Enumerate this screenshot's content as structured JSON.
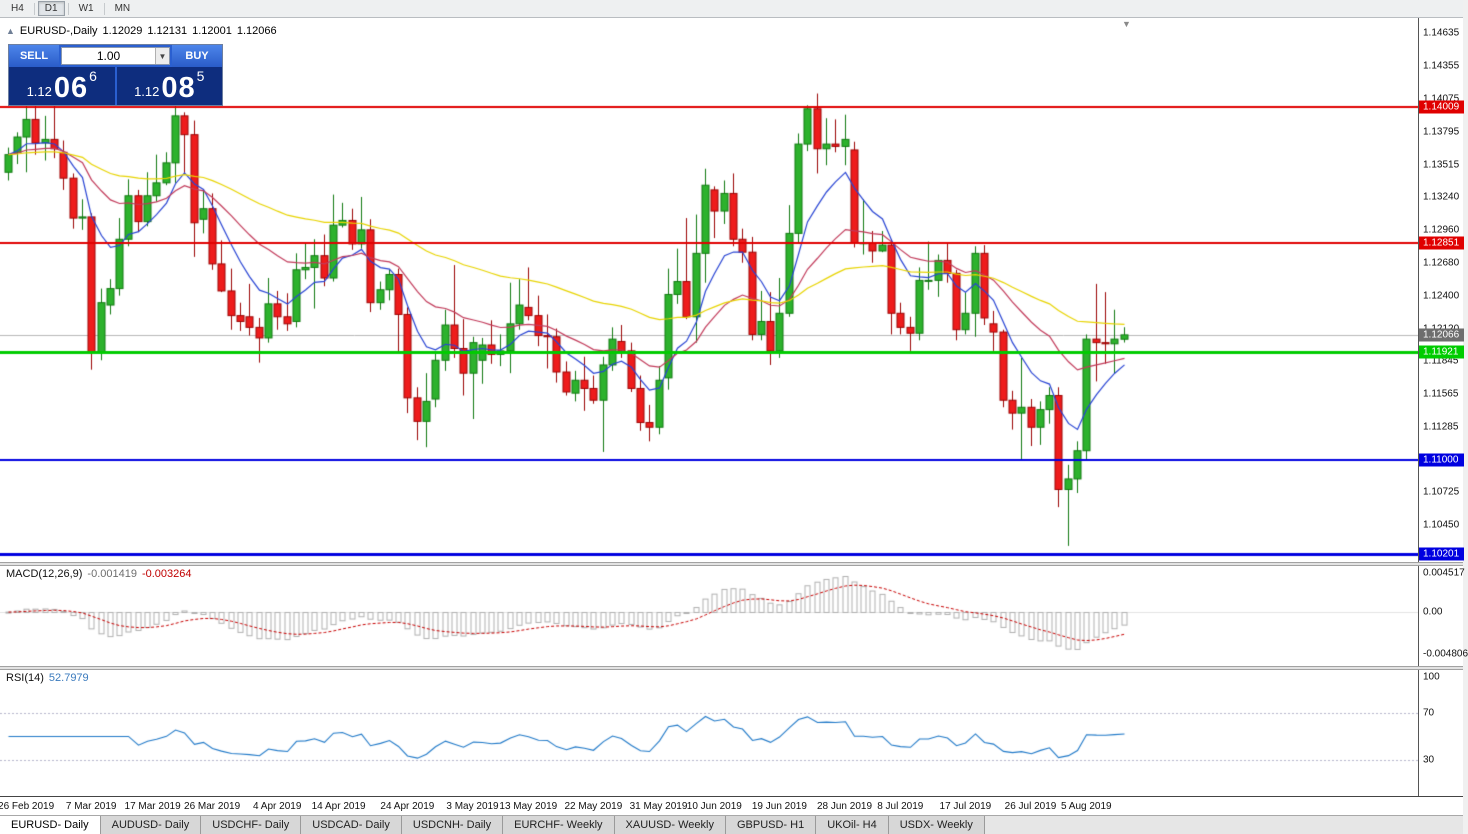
{
  "icons": {
    "collapse": "▲",
    "dropdown": "▼",
    "shift_marker": "▼"
  },
  "toolbar": {
    "periods": [
      {
        "label": "H4",
        "active": false
      },
      {
        "label": "D1",
        "active": true
      },
      {
        "label": "W1",
        "active": false
      },
      {
        "label": "MN",
        "active": false
      }
    ]
  },
  "trade_panel": {
    "sell_label": "SELL",
    "buy_label": "BUY",
    "volume": "1.00",
    "bid": {
      "prefix": "1.12",
      "big": "06",
      "sup": "6"
    },
    "ask": {
      "prefix": "1.12",
      "big": "08",
      "sup": "5"
    }
  },
  "tabs": [
    {
      "label": "EURUSD- Daily",
      "active": true
    },
    {
      "label": "AUDUSD- Daily",
      "active": false
    },
    {
      "label": "USDCHF- Daily",
      "active": false
    },
    {
      "label": "USDCAD- Daily",
      "active": false
    },
    {
      "label": "USDCNH- Daily",
      "active": false
    },
    {
      "label": "EURCHF- Weekly",
      "active": false
    },
    {
      "label": "XAUUSD- Weekly",
      "active": false
    },
    {
      "label": "GBPUSD- H1",
      "active": false
    },
    {
      "label": "UKOil- H4",
      "active": false
    },
    {
      "label": "USDX- Weekly",
      "active": false
    }
  ],
  "chart_data": {
    "type": "candlestick",
    "title": "EURUSD-,Daily",
    "symbol": "EURUSD-",
    "timeframe": "Daily",
    "ohlc_display": {
      "open": "1.12029",
      "high": "1.12131",
      "low": "1.12001",
      "close": "1.12066"
    },
    "y_axis": {
      "min": 1.10133,
      "max": 1.14763
    },
    "y_ticks": [
      "1.14635",
      "1.14355",
      "1.14075",
      "1.13795",
      "1.13515",
      "1.13240",
      "1.12960",
      "1.12680",
      "1.12400",
      "1.12120",
      "1.11845",
      "1.11565",
      "1.11285",
      "1.10725",
      "1.10450"
    ],
    "x_ticks": [
      {
        "label": "26 Feb 2019",
        "i": 2
      },
      {
        "label": "7 Mar 2019",
        "i": 9
      },
      {
        "label": "17 Mar 2019",
        "i": 15.6
      },
      {
        "label": "26 Mar 2019",
        "i": 22
      },
      {
        "label": "4 Apr 2019",
        "i": 29
      },
      {
        "label": "14 Apr 2019",
        "i": 35.6
      },
      {
        "label": "24 Apr 2019",
        "i": 43
      },
      {
        "label": "3 May 2019",
        "i": 50
      },
      {
        "label": "13 May 2019",
        "i": 56
      },
      {
        "label": "22 May 2019",
        "i": 63
      },
      {
        "label": "31 May 2019",
        "i": 70
      },
      {
        "label": "10 Jun 2019",
        "i": 76
      },
      {
        "label": "19 Jun 2019",
        "i": 83
      },
      {
        "label": "28 Jun 2019",
        "i": 90
      },
      {
        "label": "8 Jul 2019",
        "i": 96
      },
      {
        "label": "17 Jul 2019",
        "i": 103
      },
      {
        "label": "26 Jul 2019",
        "i": 110
      },
      {
        "label": "5 Aug 2019",
        "i": 116
      }
    ],
    "hlines": [
      {
        "price": 1.14009,
        "label": "1.14009",
        "color": "#e00000",
        "width": 2
      },
      {
        "price": 1.12851,
        "label": "1.12851",
        "color": "#e00000",
        "width": 2
      },
      {
        "price": 1.11921,
        "label": "1.11921",
        "color": "#00cc00",
        "width": 3
      },
      {
        "price": 1.11,
        "label": "1.11000",
        "color": "#0000e0",
        "width": 2
      },
      {
        "price": 1.10201,
        "label": "1.10201",
        "color": "#0000e0",
        "width": 3
      }
    ],
    "bid": {
      "price": 1.12066,
      "label": "1.12066",
      "tag_bg": "#6e6e6e",
      "line_color": "#b8b8b8"
    },
    "style": {
      "bull": "#2db22d",
      "bull_border": "#117a11",
      "bear": "#ee1c1c",
      "bear_border": "#9c0404"
    },
    "moving_averages": [
      {
        "period": 8,
        "type": "ema",
        "color": "#2844d4"
      },
      {
        "period": 21,
        "type": "ema",
        "color": "#c23a5a"
      },
      {
        "period": 55,
        "type": "ema",
        "color": "#e8d400"
      }
    ],
    "macd": {
      "label": "MACD(12,26,9)",
      "main_value": "-0.001419",
      "signal_value": "-0.003264",
      "axis": {
        "min": -0.0062,
        "max": 0.0053
      },
      "y_ticks": [
        {
          "label": "0.004517",
          "v": 0.004517
        },
        {
          "label": "0.00",
          "v": 0
        },
        {
          "label": "-0.004806",
          "v": -0.004806
        }
      ],
      "hist_color": "#b0b0b0",
      "signal_color": "#c80000",
      "zero_line_color": "#e4e4e4"
    },
    "rsi": {
      "label": "RSI(14)",
      "value": "52.7979",
      "axis": {
        "min": 0,
        "max": 105.8
      },
      "y_ticks": [
        {
          "label": "100",
          "v": 100
        },
        {
          "label": "70",
          "v": 70
        },
        {
          "label": "30",
          "v": 30
        }
      ],
      "levels": [
        70,
        30
      ],
      "color": "#1e78c8",
      "level_color": "#b6b6cc"
    },
    "ohlc": [
      [
        1.1345,
        1.1366,
        1.1338,
        1.136
      ],
      [
        1.1362,
        1.1379,
        1.1352,
        1.1375
      ],
      [
        1.1375,
        1.1403,
        1.1345,
        1.139
      ],
      [
        1.139,
        1.1404,
        1.136,
        1.137
      ],
      [
        1.137,
        1.1393,
        1.1355,
        1.1373
      ],
      [
        1.1373,
        1.1409,
        1.1357,
        1.1365
      ],
      [
        1.1362,
        1.1372,
        1.133,
        1.134
      ],
      [
        1.134,
        1.1344,
        1.1297,
        1.1306
      ],
      [
        1.1306,
        1.1322,
        1.1296,
        1.1307
      ],
      [
        1.1307,
        1.131,
        1.1177,
        1.1192
      ],
      [
        1.1192,
        1.1246,
        1.1185,
        1.1234
      ],
      [
        1.1232,
        1.1254,
        1.1224,
        1.1246
      ],
      [
        1.1246,
        1.1306,
        1.124,
        1.1288
      ],
      [
        1.1288,
        1.1339,
        1.1282,
        1.1325
      ],
      [
        1.1325,
        1.133,
        1.1294,
        1.1303
      ],
      [
        1.1303,
        1.1345,
        1.1299,
        1.1325
      ],
      [
        1.1325,
        1.136,
        1.132,
        1.1336
      ],
      [
        1.1336,
        1.1362,
        1.1334,
        1.1353
      ],
      [
        1.1353,
        1.1405,
        1.1336,
        1.1393
      ],
      [
        1.1393,
        1.1396,
        1.1343,
        1.1377
      ],
      [
        1.1377,
        1.1389,
        1.1273,
        1.1302
      ],
      [
        1.1305,
        1.133,
        1.1293,
        1.1314
      ],
      [
        1.1314,
        1.1327,
        1.1262,
        1.1267
      ],
      [
        1.1267,
        1.1287,
        1.1243,
        1.1244
      ],
      [
        1.1244,
        1.1263,
        1.1211,
        1.1223
      ],
      [
        1.1223,
        1.1234,
        1.121,
        1.1218
      ],
      [
        1.1222,
        1.125,
        1.1206,
        1.1213
      ],
      [
        1.1213,
        1.1221,
        1.1183,
        1.1204
      ],
      [
        1.1204,
        1.1255,
        1.12,
        1.1233
      ],
      [
        1.1233,
        1.1244,
        1.1211,
        1.1222
      ],
      [
        1.1222,
        1.1242,
        1.121,
        1.1216
      ],
      [
        1.1218,
        1.1276,
        1.1213,
        1.1262
      ],
      [
        1.1262,
        1.1285,
        1.1254,
        1.1264
      ],
      [
        1.1264,
        1.1288,
        1.1229,
        1.1274
      ],
      [
        1.1274,
        1.1292,
        1.1248,
        1.1255
      ],
      [
        1.1255,
        1.1326,
        1.1252,
        1.13
      ],
      [
        1.13,
        1.1319,
        1.1298,
        1.1304
      ],
      [
        1.1304,
        1.1314,
        1.1279,
        1.1284
      ],
      [
        1.1284,
        1.1324,
        1.128,
        1.1296
      ],
      [
        1.1296,
        1.1305,
        1.1226,
        1.1234
      ],
      [
        1.1234,
        1.1252,
        1.1228,
        1.1245
      ],
      [
        1.1245,
        1.1262,
        1.1236,
        1.1258
      ],
      [
        1.1258,
        1.1263,
        1.1192,
        1.1224
      ],
      [
        1.1224,
        1.123,
        1.114,
        1.1153
      ],
      [
        1.1153,
        1.1162,
        1.1117,
        1.1133
      ],
      [
        1.1133,
        1.1174,
        1.1111,
        1.115
      ],
      [
        1.1152,
        1.1191,
        1.1145,
        1.1185
      ],
      [
        1.1185,
        1.1228,
        1.1176,
        1.1215
      ],
      [
        1.1215,
        1.1266,
        1.1187,
        1.1195
      ],
      [
        1.1195,
        1.122,
        1.1155,
        1.1174
      ],
      [
        1.1174,
        1.1205,
        1.1135,
        1.12
      ],
      [
        1.1185,
        1.1204,
        1.1165,
        1.1198
      ],
      [
        1.1198,
        1.1219,
        1.1182,
        1.119
      ],
      [
        1.119,
        1.1207,
        1.118,
        1.1193
      ],
      [
        1.1193,
        1.1251,
        1.1174,
        1.1216
      ],
      [
        1.1216,
        1.1254,
        1.1211,
        1.1232
      ],
      [
        1.123,
        1.1264,
        1.1219,
        1.1223
      ],
      [
        1.1223,
        1.124,
        1.1197,
        1.1206
      ],
      [
        1.1206,
        1.1224,
        1.1178,
        1.1205
      ],
      [
        1.1205,
        1.1212,
        1.1166,
        1.1175
      ],
      [
        1.1175,
        1.1184,
        1.1155,
        1.1158
      ],
      [
        1.1157,
        1.1176,
        1.115,
        1.1168
      ],
      [
        1.1168,
        1.1188,
        1.1142,
        1.1161
      ],
      [
        1.1161,
        1.1172,
        1.1148,
        1.1151
      ],
      [
        1.1151,
        1.1188,
        1.1107,
        1.1181
      ],
      [
        1.1181,
        1.1213,
        1.1176,
        1.1203
      ],
      [
        1.1201,
        1.1215,
        1.1187,
        1.1193
      ],
      [
        1.1193,
        1.12,
        1.1158,
        1.1161
      ],
      [
        1.1161,
        1.1172,
        1.1125,
        1.1132
      ],
      [
        1.1132,
        1.1147,
        1.1116,
        1.1128
      ],
      [
        1.1128,
        1.118,
        1.1122,
        1.1168
      ],
      [
        1.117,
        1.1263,
        1.116,
        1.1241
      ],
      [
        1.1241,
        1.128,
        1.1233,
        1.1252
      ],
      [
        1.1252,
        1.1306,
        1.122,
        1.1222
      ],
      [
        1.1222,
        1.1309,
        1.12,
        1.1276
      ],
      [
        1.1276,
        1.1348,
        1.1251,
        1.1334
      ],
      [
        1.133,
        1.1333,
        1.1289,
        1.1312
      ],
      [
        1.1312,
        1.1338,
        1.1301,
        1.1327
      ],
      [
        1.1327,
        1.1344,
        1.1282,
        1.1288
      ],
      [
        1.1288,
        1.1297,
        1.1268,
        1.1277
      ],
      [
        1.1277,
        1.129,
        1.1202,
        1.1207
      ],
      [
        1.1207,
        1.1244,
        1.1202,
        1.1218
      ],
      [
        1.1218,
        1.1243,
        1.1181,
        1.1193
      ],
      [
        1.1193,
        1.1255,
        1.1187,
        1.1225
      ],
      [
        1.1225,
        1.1317,
        1.1222,
        1.1293
      ],
      [
        1.1293,
        1.1378,
        1.1285,
        1.1369
      ],
      [
        1.1369,
        1.1402,
        1.1363,
        1.1399
      ],
      [
        1.1399,
        1.1412,
        1.1344,
        1.1365
      ],
      [
        1.1365,
        1.1391,
        1.1351,
        1.1369
      ],
      [
        1.1369,
        1.139,
        1.1362,
        1.1367
      ],
      [
        1.1367,
        1.1394,
        1.1351,
        1.1373
      ],
      [
        1.1364,
        1.1371,
        1.1281,
        1.1285
      ],
      [
        1.1285,
        1.1322,
        1.1275,
        1.1285
      ],
      [
        1.1285,
        1.1295,
        1.1268,
        1.1278
      ],
      [
        1.1278,
        1.1295,
        1.1277,
        1.1283
      ],
      [
        1.1283,
        1.1288,
        1.1207,
        1.1225
      ],
      [
        1.1225,
        1.1234,
        1.1207,
        1.1213
      ],
      [
        1.1213,
        1.1222,
        1.1193,
        1.1208
      ],
      [
        1.1208,
        1.1264,
        1.1202,
        1.1253
      ],
      [
        1.1253,
        1.1286,
        1.1245,
        1.1253
      ],
      [
        1.1253,
        1.1275,
        1.1239,
        1.127
      ],
      [
        1.127,
        1.1285,
        1.1251,
        1.1259
      ],
      [
        1.1259,
        1.1262,
        1.1202,
        1.1211
      ],
      [
        1.1211,
        1.1243,
        1.1207,
        1.1225
      ],
      [
        1.1225,
        1.1282,
        1.1205,
        1.1276
      ],
      [
        1.1276,
        1.1283,
        1.1215,
        1.1221
      ],
      [
        1.1216,
        1.1227,
        1.1193,
        1.1209
      ],
      [
        1.1209,
        1.1211,
        1.1145,
        1.1151
      ],
      [
        1.1151,
        1.1159,
        1.1126,
        1.114
      ],
      [
        1.114,
        1.1187,
        1.1101,
        1.1145
      ],
      [
        1.1145,
        1.1152,
        1.1112,
        1.1128
      ],
      [
        1.1128,
        1.115,
        1.1113,
        1.1143
      ],
      [
        1.1143,
        1.1162,
        1.1131,
        1.1155
      ],
      [
        1.1155,
        1.1162,
        1.106,
        1.1075
      ],
      [
        1.1075,
        1.1096,
        1.1027,
        1.1084
      ],
      [
        1.1084,
        1.1116,
        1.1072,
        1.1108
      ],
      [
        1.1108,
        1.1207,
        1.1101,
        1.1203
      ],
      [
        1.1203,
        1.125,
        1.1167,
        1.12
      ],
      [
        1.12,
        1.1243,
        1.1182,
        1.1199
      ],
      [
        1.1199,
        1.1228,
        1.1174,
        1.1203
      ],
      [
        1.12029,
        1.12131,
        1.12001,
        1.12066
      ]
    ]
  }
}
